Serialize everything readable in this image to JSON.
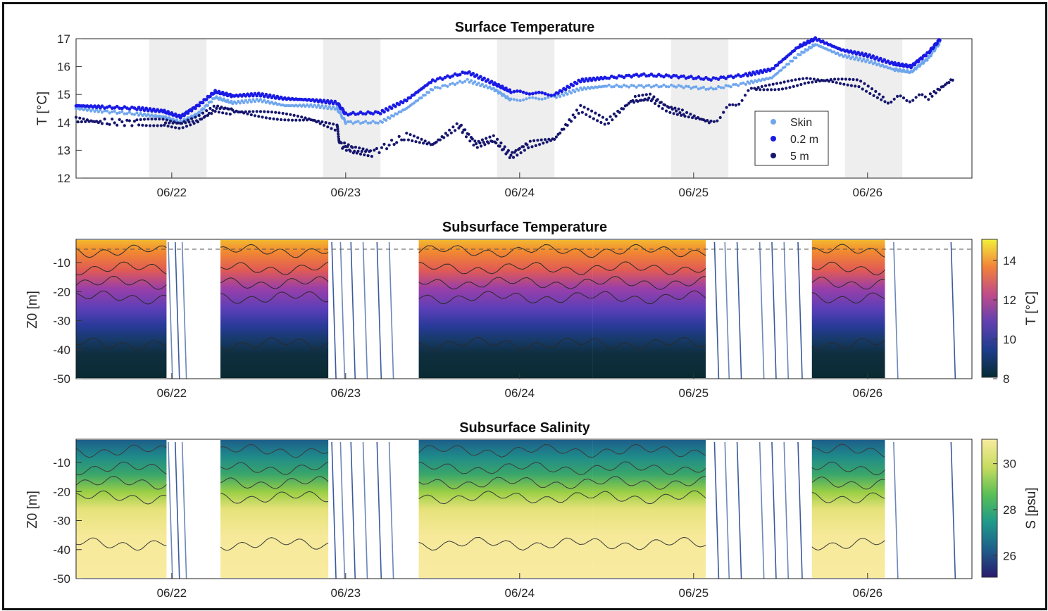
{
  "panels": {
    "surface": {
      "title": "Surface Temperature",
      "ylabel": "T [°C]",
      "yticks": [
        "17",
        "16",
        "15",
        "14",
        "13",
        "12"
      ],
      "legend": [
        "Skin",
        "0.2 m",
        "5 m"
      ]
    },
    "subtemp": {
      "title": "Subsurface Temperature",
      "ylabel": "Z0 [m]",
      "yticks": [
        "-10",
        "-20",
        "-30",
        "-40",
        "-50"
      ],
      "cbar_label": "T [°C]",
      "cbar_ticks": [
        "14",
        "12",
        "10",
        "8"
      ]
    },
    "subsal": {
      "title": "Subsurface Salinity",
      "ylabel": "Z0 [m]",
      "yticks": [
        "-10",
        "-20",
        "-30",
        "-40",
        "-50"
      ],
      "cbar_label": "S [psu]",
      "cbar_ticks": [
        "30",
        "28",
        "26"
      ]
    },
    "xticks": [
      "06/22",
      "06/23",
      "06/24",
      "06/25",
      "06/26"
    ]
  },
  "colors": {
    "skin": "#6fa6ee",
    "m02": "#1a1ae6",
    "m5": "#16166e",
    "shade": "#eeeeee"
  },
  "chart_data": [
    {
      "type": "scatter",
      "title": "Surface Temperature",
      "ylabel": "T [°C]",
      "ylim": [
        12,
        17
      ],
      "x_range_days": [
        21.45,
        26.6
      ],
      "x_tick_labels": [
        "06/22",
        "06/23",
        "06/24",
        "06/25",
        "06/26"
      ],
      "x_tick_values": [
        22,
        23,
        24,
        25,
        26
      ],
      "night_shading": [
        [
          21.87,
          22.2
        ],
        [
          22.87,
          23.2
        ],
        [
          23.87,
          24.2
        ],
        [
          24.87,
          25.2
        ],
        [
          25.87,
          26.2
        ]
      ],
      "legend_position": "right",
      "series": [
        {
          "name": "Skin",
          "x": [
            21.45,
            21.6,
            21.8,
            21.95,
            22.05,
            22.15,
            22.25,
            22.35,
            22.5,
            22.65,
            22.8,
            22.95,
            23.0,
            23.2,
            23.35,
            23.5,
            23.7,
            23.85,
            23.95,
            24.2,
            24.35,
            24.5,
            24.7,
            24.9,
            25.1,
            25.3,
            25.45,
            25.6,
            25.7,
            25.85,
            26.0,
            26.15,
            26.25,
            26.35,
            26.42
          ],
          "y": [
            14.5,
            14.4,
            14.3,
            14.2,
            14.0,
            14.3,
            14.9,
            14.7,
            14.8,
            14.6,
            14.6,
            14.5,
            14.0,
            14.0,
            14.5,
            15.2,
            15.5,
            15.2,
            14.8,
            14.9,
            15.2,
            15.3,
            15.3,
            15.3,
            15.2,
            15.4,
            15.6,
            16.4,
            16.8,
            16.4,
            16.2,
            15.9,
            15.8,
            16.3,
            16.9
          ]
        },
        {
          "name": "0.2 m",
          "x": [
            21.45,
            21.6,
            21.8,
            21.95,
            22.05,
            22.15,
            22.25,
            22.35,
            22.5,
            22.65,
            22.8,
            22.95,
            23.0,
            23.2,
            23.35,
            23.5,
            23.7,
            23.85,
            23.95,
            24.2,
            24.35,
            24.5,
            24.7,
            24.9,
            25.1,
            25.3,
            25.45,
            25.6,
            25.7,
            25.85,
            26.0,
            26.15,
            26.25,
            26.35,
            26.42
          ],
          "y": [
            14.6,
            14.55,
            14.5,
            14.4,
            14.2,
            14.6,
            15.1,
            14.95,
            15.0,
            14.85,
            14.8,
            14.7,
            14.3,
            14.35,
            14.8,
            15.5,
            15.8,
            15.4,
            15.1,
            15.0,
            15.5,
            15.6,
            15.7,
            15.65,
            15.55,
            15.7,
            15.9,
            16.7,
            17.0,
            16.6,
            16.4,
            16.1,
            16.0,
            16.5,
            17.0
          ]
        },
        {
          "name": "5 m",
          "x": [
            21.45,
            21.6,
            21.8,
            21.95,
            22.05,
            22.15,
            22.25,
            22.35,
            22.5,
            22.65,
            22.8,
            22.95,
            22.97,
            23.05,
            23.15,
            23.35,
            23.5,
            23.65,
            23.75,
            23.85,
            23.95,
            24.05,
            24.2,
            24.35,
            24.5,
            24.65,
            24.75,
            24.85,
            24.95,
            25.1,
            25.35,
            25.5,
            25.65,
            25.8,
            25.95,
            26.1,
            26.35,
            26.5
          ],
          "y": [
            14.1,
            14.0,
            14.0,
            14.0,
            13.9,
            14.1,
            14.5,
            14.4,
            14.3,
            14.2,
            14.1,
            13.8,
            13.2,
            13.0,
            12.9,
            13.5,
            13.2,
            13.9,
            13.2,
            13.4,
            12.8,
            13.2,
            13.4,
            14.5,
            14.0,
            14.8,
            14.9,
            14.5,
            14.3,
            14.0,
            15.2,
            15.3,
            15.5,
            15.5,
            15.4,
            14.8,
            14.9,
            15.6
          ]
        }
      ]
    },
    {
      "type": "heatmap",
      "title": "Subsurface Temperature",
      "ylabel": "Z0 [m]",
      "ylim": [
        -50,
        -2
      ],
      "colorbar_label": "T [°C]",
      "colorbar_range": [
        8,
        15
      ],
      "x_tick_labels": [
        "06/22",
        "06/23",
        "06/24",
        "06/25",
        "06/26"
      ],
      "segments_days": [
        [
          21.45,
          21.97
        ],
        [
          22.28,
          22.9
        ],
        [
          23.42,
          24.42
        ],
        [
          24.42,
          25.07
        ],
        [
          25.68,
          26.1
        ]
      ],
      "z_levels": [
        -2,
        -5,
        -10,
        -15,
        -20,
        -25,
        -30,
        -35,
        -40,
        -45,
        -50
      ],
      "profile_T": [
        14.5,
        13.8,
        12.8,
        11.9,
        11.0,
        10.2,
        9.6,
        9.0,
        8.4,
        8.1,
        8.0
      ]
    },
    {
      "type": "heatmap",
      "title": "Subsurface Salinity",
      "ylabel": "Z0 [m]",
      "ylim": [
        -50,
        -2
      ],
      "colorbar_label": "S [psu]",
      "colorbar_range": [
        25,
        31
      ],
      "x_tick_labels": [
        "06/22",
        "06/23",
        "06/24",
        "06/25",
        "06/26"
      ],
      "segments_days": [
        [
          21.45,
          21.97
        ],
        [
          22.28,
          22.9
        ],
        [
          23.42,
          24.42
        ],
        [
          24.42,
          25.07
        ],
        [
          25.68,
          26.1
        ]
      ],
      "z_levels": [
        -2,
        -5,
        -10,
        -15,
        -20,
        -25,
        -30,
        -35,
        -40,
        -45,
        -50
      ],
      "profile_S": [
        26.8,
        27.5,
        28.4,
        29.0,
        29.6,
        30.0,
        30.3,
        30.5,
        30.6,
        30.7,
        30.7
      ]
    }
  ]
}
